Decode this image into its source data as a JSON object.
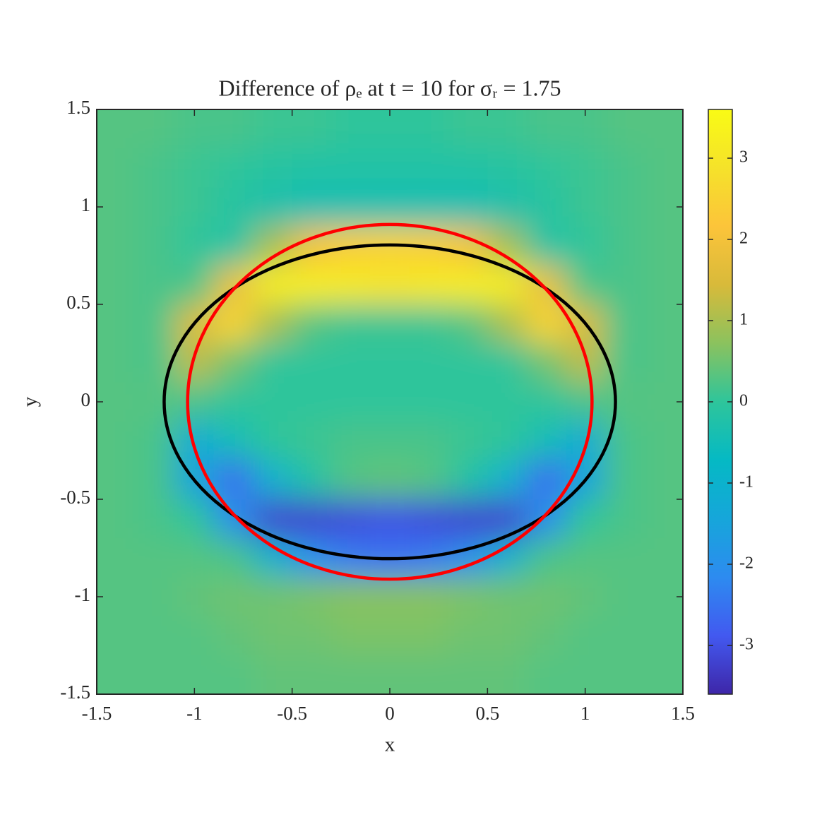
{
  "chart_data": {
    "type": "heatmap",
    "title": "Difference of ρₑ at t = 10 for σᵣ = 1.75",
    "xlabel": "x",
    "ylabel": "y",
    "xlim": [
      -1.5,
      1.5
    ],
    "ylim": [
      -1.5,
      1.5
    ],
    "xticks": [
      -1.5,
      -1,
      -0.5,
      0,
      0.5,
      1,
      1.5
    ],
    "yticks": [
      -1.5,
      -1,
      -0.5,
      0,
      0.5,
      1,
      1.5
    ],
    "clim": [
      -3.6,
      3.6
    ],
    "cticks": [
      -3,
      -2,
      -1,
      0,
      1,
      2,
      3
    ],
    "colormap": [
      "#3e26a8",
      "#4259f0",
      "#2d8bf0",
      "#16a6da",
      "#05b9c4",
      "#2ec59b",
      "#8bc25e",
      "#d8ba3a",
      "#fcc43a",
      "#f5e22a",
      "#f9fb15"
    ],
    "x": [
      -1.4,
      -1.2,
      -1.0,
      -0.8,
      -0.6,
      -0.4,
      -0.2,
      0,
      0.2,
      0.4,
      0.6,
      0.8,
      1.0,
      1.2,
      1.4
    ],
    "y": [
      1.4,
      1.2,
      1.0,
      0.8,
      0.6,
      0.4,
      0.2,
      0,
      -0.2,
      -0.4,
      -0.6,
      -0.8,
      -1.0,
      -1.2,
      -1.4
    ],
    "z": [
      [
        0.3,
        0.3,
        0.2,
        0.2,
        0.1,
        0.1,
        0,
        0,
        0,
        0.1,
        0.1,
        0.2,
        0.2,
        0.3,
        0.3
      ],
      [
        0.3,
        0.2,
        0.1,
        0,
        -0.1,
        -0.2,
        -0.2,
        -0.2,
        -0.2,
        -0.2,
        -0.1,
        0,
        0.1,
        0.2,
        0.3
      ],
      [
        0.3,
        0.2,
        0.1,
        -0.1,
        -0.3,
        -0.4,
        -0.4,
        -0.4,
        -0.4,
        -0.4,
        -0.3,
        -0.1,
        0.1,
        0.2,
        0.3
      ],
      [
        0.3,
        0.2,
        0,
        -0.2,
        1.0,
        2.0,
        2.4,
        2.5,
        2.4,
        2.0,
        1.0,
        -0.2,
        0,
        0.2,
        0.3
      ],
      [
        0.3,
        0.2,
        0.2,
        1.8,
        3.2,
        3.2,
        3.1,
        3.0,
        3.1,
        3.2,
        3.2,
        1.8,
        0.2,
        0.2,
        0.3
      ],
      [
        0.3,
        0.2,
        1.5,
        2.6,
        1.0,
        0.3,
        0.1,
        0.1,
        0.1,
        0.3,
        1.0,
        2.6,
        1.5,
        0.2,
        0.3
      ],
      [
        0.3,
        0.2,
        1.2,
        0.5,
        0,
        0,
        0,
        0,
        0,
        0,
        0,
        0.5,
        1.2,
        0.2,
        0.3
      ],
      [
        0.3,
        0.3,
        0.2,
        0,
        0,
        0,
        0,
        0,
        0,
        0,
        0,
        0,
        0.2,
        0.3,
        0.3
      ],
      [
        0.3,
        0.2,
        -1.2,
        -0.5,
        0,
        0.1,
        0.2,
        0.2,
        0.2,
        0.1,
        0,
        -0.5,
        -1.2,
        0.2,
        0.3
      ],
      [
        0.3,
        0.2,
        -1.5,
        -2.6,
        -1.0,
        -0.2,
        0.3,
        0.4,
        0.3,
        -0.2,
        -1.0,
        -2.6,
        -1.5,
        0.2,
        0.3
      ],
      [
        0.3,
        0.2,
        0.0,
        -2.0,
        -3.2,
        -3.2,
        -3.1,
        -3.0,
        -3.1,
        -3.2,
        -3.2,
        -2.0,
        0.0,
        0.2,
        0.3
      ],
      [
        0.3,
        0.3,
        0.3,
        0.2,
        -1.0,
        -2.0,
        -2.4,
        -2.5,
        -2.4,
        -2.0,
        -1.0,
        0.2,
        0.3,
        0.3,
        0.3
      ],
      [
        0.3,
        0.3,
        0.4,
        0.5,
        0.5,
        0.6,
        0.7,
        0.7,
        0.7,
        0.6,
        0.5,
        0.5,
        0.4,
        0.3,
        0.3
      ],
      [
        0.3,
        0.3,
        0.3,
        0.4,
        0.5,
        0.5,
        0.6,
        0.6,
        0.6,
        0.5,
        0.5,
        0.4,
        0.3,
        0.3,
        0.3
      ],
      [
        0.3,
        0.3,
        0.3,
        0.3,
        0.4,
        0.4,
        0.4,
        0.4,
        0.4,
        0.4,
        0.4,
        0.3,
        0.3,
        0.3,
        0.3
      ]
    ],
    "overlays": [
      {
        "color": "#000000",
        "cx": 0,
        "cy": 0,
        "rx": 1.155,
        "ry": 0.805
      },
      {
        "color": "#ff0000",
        "cx": 0,
        "cy": 0,
        "rx": 1.035,
        "ry": 0.91
      }
    ]
  }
}
